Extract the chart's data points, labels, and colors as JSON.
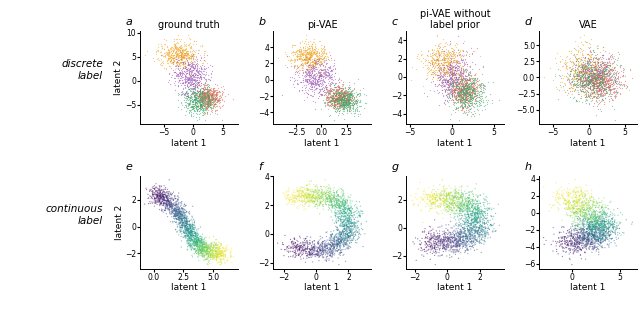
{
  "titles": [
    "ground truth",
    "pi-VAE",
    "pi-VAE without\nlabel prior",
    "VAE"
  ],
  "row_labels": [
    "discrete\nlabel",
    "continuous\nlabel"
  ],
  "panel_labels": [
    "a",
    "b",
    "c",
    "d",
    "e",
    "f",
    "g",
    "h"
  ],
  "xlabel": "latent 1",
  "ylabel": "latent 2",
  "discrete_colors": [
    "#F5A623",
    "#9B59B6",
    "#E8604A",
    "#3BAA6E"
  ],
  "n_points": 2000,
  "seed": 42,
  "figsize": [
    6.4,
    3.09
  ],
  "dpi": 100,
  "markersize": 0.8,
  "alpha": 0.55
}
